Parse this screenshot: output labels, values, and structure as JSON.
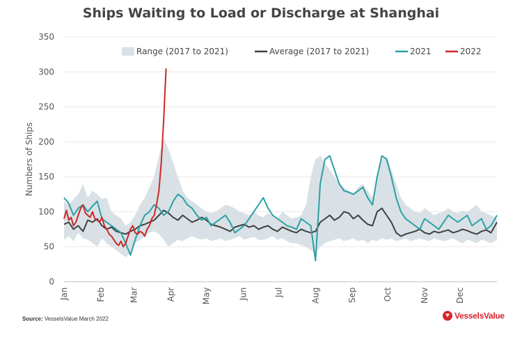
{
  "chart_data": {
    "type": "line",
    "title": "Ships Waiting to Load or Discharge at Shanghai",
    "ylabel": "Numbers of Ships",
    "xlabel": "",
    "ylim": [
      0,
      350
    ],
    "yticks": [
      0,
      50,
      100,
      150,
      200,
      250,
      300,
      350
    ],
    "xlim": [
      0,
      365
    ],
    "x_unit": "day of year",
    "month_labels": [
      "Jan",
      "Feb",
      "Mar",
      "Apr",
      "May",
      "Jun",
      "Jul",
      "Aug",
      "Sep",
      "Oct",
      "Nov",
      "Dec"
    ],
    "month_positions": [
      0,
      31,
      59,
      90,
      120,
      151,
      181,
      212,
      243,
      273,
      304,
      334
    ],
    "grid": "horizontal",
    "legend_position": "top-right",
    "legend": [
      "Range (2017 to 2021)",
      "Average (2017 to 2021)",
      "2021",
      "2022"
    ],
    "range": {
      "name": "Range (2017 to 2021)",
      "color": "#d9e1e6",
      "x": [
        0,
        4,
        8,
        12,
        16,
        20,
        24,
        28,
        32,
        36,
        40,
        44,
        48,
        52,
        56,
        60,
        64,
        68,
        72,
        76,
        80,
        84,
        88,
        92,
        96,
        100,
        104,
        108,
        112,
        116,
        120,
        124,
        128,
        132,
        136,
        140,
        144,
        148,
        152,
        156,
        160,
        164,
        168,
        172,
        176,
        180,
        184,
        188,
        192,
        196,
        200,
        204,
        208,
        212,
        216,
        220,
        224,
        228,
        232,
        236,
        240,
        244,
        248,
        252,
        256,
        260,
        264,
        268,
        272,
        276,
        280,
        284,
        288,
        292,
        296,
        300,
        304,
        308,
        312,
        316,
        320,
        324,
        328,
        332,
        336,
        340,
        344,
        348,
        352,
        356,
        360,
        365
      ],
      "low": [
        60,
        65,
        58,
        70,
        62,
        60,
        55,
        50,
        62,
        55,
        50,
        45,
        40,
        35,
        42,
        55,
        60,
        65,
        70,
        72,
        68,
        60,
        50,
        55,
        60,
        58,
        62,
        65,
        62,
        60,
        62,
        58,
        60,
        62,
        58,
        60,
        62,
        65,
        60,
        62,
        64,
        60,
        60,
        62,
        65,
        60,
        62,
        58,
        55,
        55,
        52,
        50,
        45,
        40,
        50,
        55,
        58,
        60,
        62,
        58,
        60,
        62,
        58,
        60,
        55,
        60,
        58,
        62,
        60,
        62,
        58,
        60,
        62,
        58,
        60,
        62,
        60,
        58,
        62,
        60,
        58,
        60,
        62,
        58,
        55,
        60,
        58,
        55,
        60,
        58,
        55,
        60
      ],
      "high": [
        115,
        110,
        118,
        125,
        140,
        120,
        130,
        125,
        118,
        120,
        100,
        95,
        90,
        80,
        85,
        95,
        110,
        120,
        135,
        150,
        180,
        205,
        190,
        170,
        150,
        130,
        120,
        115,
        110,
        105,
        100,
        98,
        100,
        105,
        110,
        108,
        105,
        100,
        98,
        95,
        100,
        95,
        92,
        98,
        95,
        90,
        100,
        95,
        90,
        92,
        95,
        110,
        150,
        175,
        180,
        170,
        160,
        150,
        140,
        135,
        130,
        125,
        135,
        140,
        130,
        120,
        150,
        175,
        180,
        160,
        140,
        120,
        110,
        105,
        100,
        98,
        105,
        100,
        95,
        98,
        100,
        105,
        100,
        98,
        102,
        100,
        105,
        110,
        100,
        98,
        95,
        90
      ]
    },
    "series": [
      {
        "name": "Average (2017 to 2021)",
        "color": "#3f3f3f",
        "x": [
          0,
          4,
          8,
          12,
          16,
          20,
          24,
          28,
          32,
          36,
          40,
          44,
          48,
          52,
          56,
          60,
          64,
          68,
          72,
          76,
          80,
          84,
          88,
          92,
          96,
          100,
          104,
          108,
          112,
          116,
          120,
          124,
          128,
          132,
          136,
          140,
          144,
          148,
          152,
          156,
          160,
          164,
          168,
          172,
          176,
          180,
          184,
          188,
          192,
          196,
          200,
          204,
          208,
          212,
          216,
          220,
          224,
          228,
          232,
          236,
          240,
          244,
          248,
          252,
          256,
          260,
          264,
          268,
          272,
          276,
          280,
          284,
          288,
          292,
          296,
          300,
          304,
          308,
          312,
          316,
          320,
          324,
          328,
          332,
          336,
          340,
          344,
          348,
          352,
          356,
          360,
          365
        ],
        "values": [
          82,
          85,
          75,
          80,
          72,
          88,
          85,
          90,
          80,
          75,
          78,
          72,
          70,
          68,
          72,
          75,
          80,
          82,
          85,
          88,
          95,
          102,
          98,
          92,
          88,
          95,
          90,
          85,
          88,
          92,
          88,
          82,
          80,
          78,
          75,
          72,
          78,
          80,
          82,
          78,
          80,
          75,
          78,
          80,
          75,
          72,
          78,
          75,
          72,
          70,
          75,
          72,
          70,
          72,
          85,
          90,
          95,
          88,
          92,
          100,
          98,
          90,
          95,
          88,
          82,
          80,
          100,
          105,
          95,
          85,
          70,
          65,
          68,
          70,
          72,
          75,
          70,
          68,
          72,
          70,
          72,
          74,
          70,
          72,
          75,
          73,
          70,
          68,
          72,
          74,
          70,
          85
        ]
      },
      {
        "name": "2021",
        "color": "#2aa0a4",
        "x": [
          0,
          4,
          8,
          12,
          16,
          20,
          24,
          28,
          32,
          36,
          40,
          44,
          48,
          52,
          56,
          60,
          64,
          68,
          72,
          76,
          80,
          84,
          88,
          92,
          96,
          100,
          104,
          108,
          112,
          116,
          120,
          124,
          128,
          132,
          136,
          140,
          144,
          148,
          152,
          156,
          160,
          164,
          168,
          172,
          176,
          180,
          184,
          188,
          192,
          196,
          200,
          204,
          208,
          212,
          216,
          220,
          224,
          228,
          232,
          236,
          240,
          244,
          248,
          252,
          256,
          260,
          264,
          268,
          272,
          276,
          280,
          284,
          288,
          292,
          296,
          300,
          304,
          308,
          312,
          316,
          320,
          324,
          328,
          332,
          336,
          340,
          344,
          348,
          352,
          356,
          360,
          365
        ],
        "values": [
          120,
          112,
          95,
          105,
          110,
          100,
          108,
          115,
          90,
          85,
          80,
          75,
          70,
          55,
          38,
          60,
          80,
          95,
          100,
          110,
          105,
          95,
          100,
          115,
          125,
          120,
          110,
          105,
          95,
          88,
          92,
          80,
          85,
          90,
          95,
          85,
          70,
          75,
          80,
          90,
          100,
          110,
          120,
          105,
          95,
          90,
          85,
          80,
          78,
          75,
          90,
          85,
          80,
          30,
          140,
          175,
          180,
          160,
          140,
          130,
          128,
          125,
          130,
          135,
          120,
          110,
          150,
          180,
          175,
          150,
          120,
          100,
          90,
          85,
          80,
          75,
          90,
          85,
          80,
          75,
          85,
          95,
          90,
          85,
          90,
          95,
          80,
          85,
          90,
          75,
          80,
          95
        ]
      },
      {
        "name": "2022",
        "color": "#cc2727",
        "x": [
          0,
          2,
          4,
          6,
          8,
          10,
          12,
          14,
          16,
          18,
          20,
          22,
          24,
          26,
          28,
          30,
          32,
          34,
          36,
          38,
          40,
          42,
          44,
          46,
          48,
          50,
          52,
          54,
          56,
          58,
          60,
          62,
          64,
          66,
          68,
          70,
          72,
          74,
          76,
          78,
          80,
          82,
          84,
          86
        ],
        "values": [
          90,
          102,
          88,
          92,
          80,
          85,
          95,
          105,
          110,
          98,
          95,
          92,
          100,
          90,
          88,
          85,
          92,
          80,
          75,
          68,
          65,
          60,
          55,
          52,
          58,
          50,
          55,
          65,
          75,
          80,
          70,
          68,
          72,
          70,
          65,
          75,
          80,
          90,
          95,
          110,
          130,
          170,
          230,
          305
        ]
      }
    ]
  },
  "source": {
    "label": "Source:",
    "text": "VesselsValue March 2022"
  },
  "logo": {
    "text": "VesselsValue",
    "name": "vesselsvalue-logo"
  }
}
